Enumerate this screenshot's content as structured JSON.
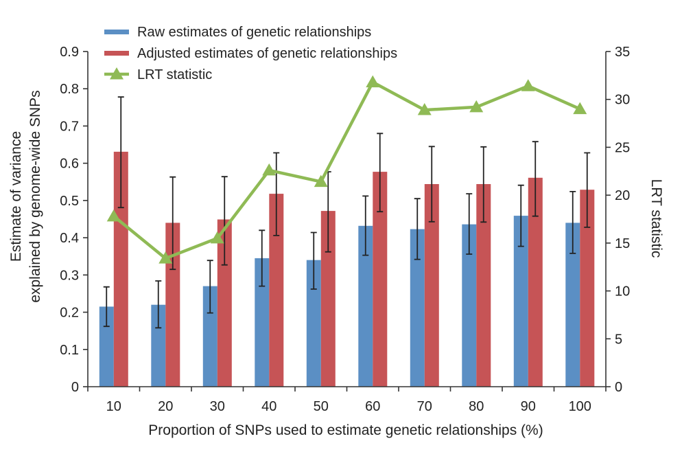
{
  "chart_data": {
    "type": "bar",
    "categories": [
      "10",
      "20",
      "30",
      "40",
      "50",
      "60",
      "70",
      "80",
      "90",
      "100"
    ],
    "xlabel": "Proportion of SNPs used to estimate genetic relationships (%)",
    "ylabel_lines": [
      "Estimate of variance",
      "explained by genome-wide SNPs"
    ],
    "y2label": "LRT statistic",
    "ylim": [
      0,
      0.9
    ],
    "y_ticks": [
      "0",
      "0.1",
      "0.2",
      "0.3",
      "0.4",
      "0.5",
      "0.6",
      "0.7",
      "0.8",
      "0.9"
    ],
    "y2lim": [
      0,
      35
    ],
    "y2_ticks": [
      "0",
      "5",
      "10",
      "15",
      "20",
      "25",
      "30",
      "35"
    ],
    "series": [
      {
        "name": "Raw estimates of genetic relationships",
        "kind": "bar",
        "axis": "left",
        "color": "#5b8fc4",
        "values": [
          0.215,
          0.22,
          0.27,
          0.345,
          0.34,
          0.432,
          0.423,
          0.436,
          0.459,
          0.44
        ],
        "err_low": [
          0.162,
          0.158,
          0.198,
          0.27,
          0.262,
          0.353,
          0.342,
          0.356,
          0.377,
          0.358
        ],
        "err_high": [
          0.268,
          0.284,
          0.339,
          0.42,
          0.414,
          0.512,
          0.505,
          0.518,
          0.541,
          0.524
        ]
      },
      {
        "name": "Adjusted estimates of genetic relationships",
        "kind": "bar",
        "axis": "left",
        "color": "#c65456",
        "values": [
          0.631,
          0.44,
          0.449,
          0.518,
          0.472,
          0.577,
          0.544,
          0.544,
          0.561,
          0.529
        ],
        "err_low": [
          0.481,
          0.315,
          0.327,
          0.406,
          0.362,
          0.47,
          0.443,
          0.442,
          0.458,
          0.428
        ],
        "err_high": [
          0.778,
          0.563,
          0.564,
          0.628,
          0.577,
          0.68,
          0.645,
          0.644,
          0.658,
          0.628
        ]
      },
      {
        "name": "LRT statistic",
        "kind": "line",
        "axis": "right",
        "color": "#8fba55",
        "values": [
          17.8,
          13.4,
          15.5,
          22.6,
          21.4,
          31.8,
          28.9,
          29.2,
          31.4,
          29.0
        ]
      }
    ],
    "legend_position": "top-left",
    "grid": false
  }
}
